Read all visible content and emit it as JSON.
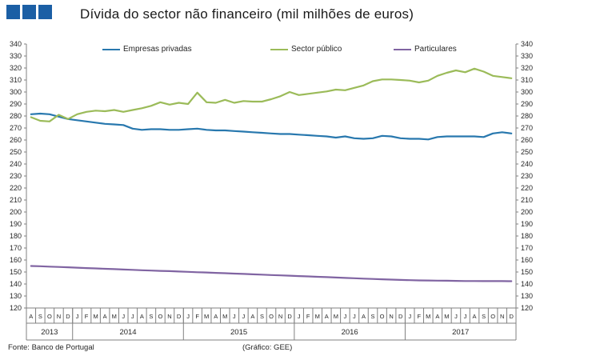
{
  "header": {
    "title": "Dívida do sector não financeiro (mil milhões de euros)",
    "logo_color": "#1b5fa5"
  },
  "legend": {
    "position": "top",
    "items": [
      {
        "label": "Empresas privadas",
        "color": "#2878ae"
      },
      {
        "label": "Sector público",
        "color": "#9bbb59"
      },
      {
        "label": "Particulares",
        "color": "#8064a2"
      }
    ]
  },
  "footer": {
    "source": "Fonte: Banco de Portugal",
    "credit": "(Gráfico: GEE)"
  },
  "chart_data": {
    "type": "line",
    "title": "Dívida do sector não financeiro (mil milhões de euros)",
    "ylim": [
      120,
      340
    ],
    "y_step": 10,
    "grid": false,
    "dual_y_axis": true,
    "axis_color": "#808080",
    "text_color": "#262626",
    "categories": [
      "A",
      "S",
      "O",
      "N",
      "D",
      "J",
      "F",
      "M",
      "A",
      "M",
      "J",
      "J",
      "A",
      "S",
      "O",
      "N",
      "D",
      "J",
      "F",
      "M",
      "A",
      "M",
      "J",
      "J",
      "A",
      "S",
      "O",
      "N",
      "D",
      "J",
      "F",
      "M",
      "A",
      "M",
      "J",
      "J",
      "A",
      "S",
      "O",
      "N",
      "D",
      "J",
      "F",
      "M",
      "A",
      "M",
      "J",
      "J",
      "A",
      "S",
      "O",
      "N",
      "D"
    ],
    "year_groups": [
      {
        "label": "2013",
        "months": 5
      },
      {
        "label": "2014",
        "months": 12
      },
      {
        "label": "2015",
        "months": 12
      },
      {
        "label": "2016",
        "months": 12
      },
      {
        "label": "2017",
        "months": 12
      }
    ],
    "series": [
      {
        "name": "Empresas privadas",
        "color": "#2878ae",
        "values": [
          281.5,
          282,
          281.5,
          279.5,
          277.5,
          276.5,
          275.5,
          274.5,
          273.5,
          273,
          272.5,
          269.5,
          268.5,
          269,
          269,
          268.5,
          268.5,
          269,
          269.5,
          268.5,
          268,
          268,
          267.5,
          267,
          266.5,
          266,
          265.5,
          265,
          265,
          264.5,
          264,
          263.5,
          263,
          262,
          263,
          261.5,
          261,
          261.5,
          263.5,
          263,
          261.5,
          261,
          261,
          260.5,
          262.5,
          263,
          263,
          263,
          263,
          262.5,
          265.5,
          266.5,
          265.5
        ]
      },
      {
        "name": "Sector público",
        "color": "#9bbb59",
        "values": [
          279,
          276,
          275.5,
          281,
          277.5,
          281.5,
          283.5,
          284.5,
          284,
          285,
          283.5,
          285,
          286.5,
          288.5,
          291.5,
          289.5,
          291,
          290,
          299.5,
          291.5,
          291,
          293.5,
          291,
          292.5,
          292,
          292,
          294,
          296.5,
          300,
          297.5,
          298.5,
          299.5,
          300.5,
          302,
          301.5,
          303.5,
          305.5,
          309,
          310.5,
          310.5,
          310,
          309.5,
          308,
          309.5,
          313.5,
          316,
          318,
          316.5,
          319.5,
          317,
          313.5,
          312.5,
          311.5
        ]
      },
      {
        "name": "Particulares",
        "color": "#8064a2",
        "values": [
          155,
          154.8,
          154.5,
          154.2,
          153.9,
          153.6,
          153.3,
          153,
          152.7,
          152.4,
          152.1,
          151.8,
          151.5,
          151.2,
          150.9,
          150.7,
          150.4,
          150.1,
          149.8,
          149.6,
          149.3,
          149,
          148.7,
          148.4,
          148.1,
          147.8,
          147.5,
          147.2,
          146.9,
          146.6,
          146.3,
          146,
          145.7,
          145.4,
          145.1,
          144.8,
          144.5,
          144.2,
          143.9,
          143.7,
          143.4,
          143.2,
          143,
          142.9,
          142.8,
          142.7,
          142.6,
          142.5,
          142.5,
          142.4,
          142.4,
          142.4,
          142.3
        ]
      }
    ]
  }
}
